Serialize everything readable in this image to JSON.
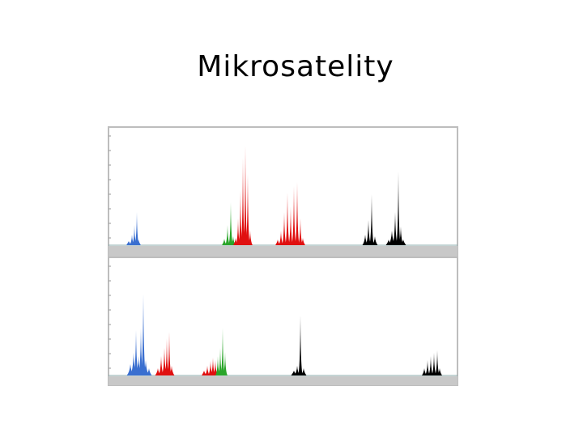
{
  "header": {
    "title": "Mikrosatelity"
  }
}
